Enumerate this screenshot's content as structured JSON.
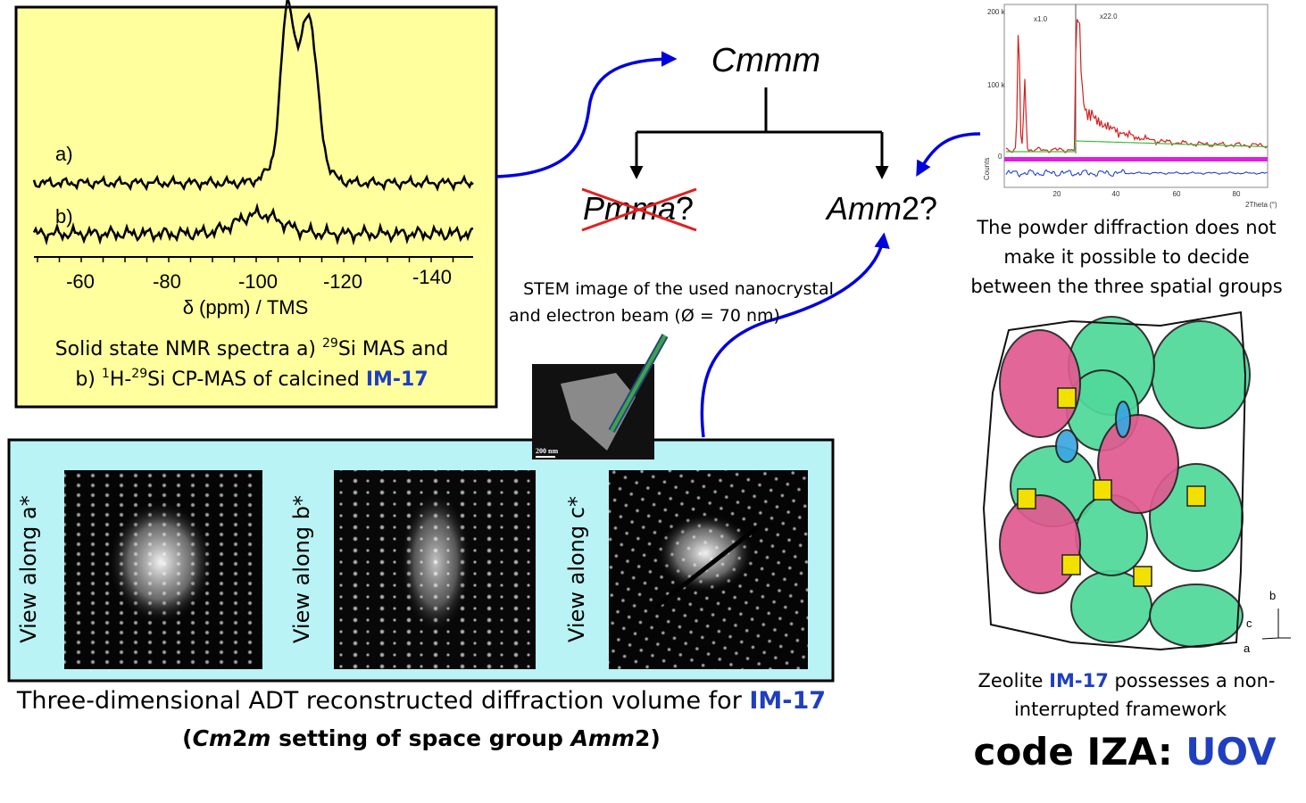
{
  "nmr": {
    "spectrum_labels": [
      "a)",
      "b)"
    ],
    "x_ticks": [
      "-60",
      "-80",
      "-100",
      "-120",
      "-140"
    ],
    "x_label": "δ (ppm) / TMS",
    "caption": [
      [
        "Solid state NMR spectra a) ",
        "29",
        "Si MAS and"
      ],
      [
        "b) ",
        "1",
        "H-",
        "29",
        "Si CP-MAS of calcined ",
        "IM-17"
      ]
    ]
  },
  "symmetry": {
    "parent": "Cmmm",
    "option_1": [
      "Pmma",
      "?"
    ],
    "option_2": [
      "Amm",
      "2?"
    ]
  },
  "stem": {
    "caption": [
      "STEM image of the used nanocrystal",
      "and electron beam (Ø = 70 nm)"
    ],
    "scale": "200 nm"
  },
  "adt": {
    "views": [
      "View along a*",
      "View along b*",
      "View along c*"
    ],
    "caption": [
      [
        "Three-dimensional ADT reconstructed diffraction volume for ",
        "IM-17"
      ],
      [
        "(",
        "Cm",
        "2",
        "m",
        " setting of space group ",
        "Amm",
        "2)"
      ]
    ]
  },
  "powder": {
    "y_ticks": [
      "200 k",
      "100 k",
      "0"
    ],
    "y_label": "Counts",
    "x_ticks": [
      "20",
      "40",
      "60",
      "80"
    ],
    "x_label": "2Theta (°)",
    "scale_labels": [
      "x1.0",
      "x22.0"
    ],
    "caption": [
      "The powder diffraction does not",
      "make it possible to decide",
      "between the three spatial groups"
    ]
  },
  "framework": {
    "axes": [
      "b",
      "c",
      "a"
    ],
    "caption": [
      [
        "Zeolite ",
        "IM-17",
        " possesses a non-"
      ],
      [
        "interrupted framework"
      ]
    ],
    "code": [
      "code IZA: ",
      "UOV"
    ]
  }
}
